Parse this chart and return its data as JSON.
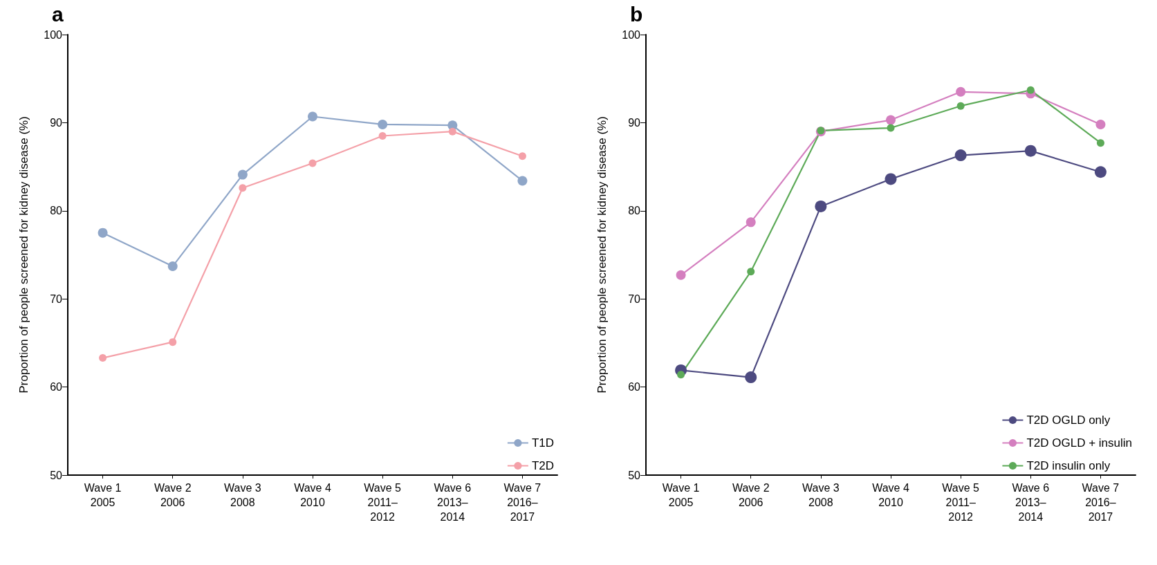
{
  "chart_data": [
    {
      "type": "line",
      "title": "a",
      "ylabel": "Proportion of people screened for kidney disease (%)",
      "categories": [
        "Wave 1\n2005",
        "Wave 2\n2006",
        "Wave 3\n2008",
        "Wave 4\n2010",
        "Wave 5\n2011–\n2012",
        "Wave 6\n2013–\n2014",
        "Wave 7\n2016–\n2017"
      ],
      "series": [
        {
          "name": "T1D",
          "color": "#8fa6c8",
          "values": [
            77.5,
            73.7,
            84.1,
            90.7,
            89.8,
            89.7,
            83.4
          ]
        },
        {
          "name": "T2D",
          "color": "#f4a0a8",
          "values": [
            63.3,
            65.1,
            82.6,
            85.4,
            88.5,
            89.0,
            86.2
          ]
        }
      ],
      "ylim": [
        50,
        100
      ],
      "yticks": [
        50,
        60,
        70,
        80,
        90,
        100
      ],
      "grid": false,
      "legend": "bottom right",
      "marker": "circle",
      "line_style": "solid"
    },
    {
      "type": "line",
      "title": "b",
      "ylabel": "Proportion of people screened for kidney disease (%)",
      "categories": [
        "Wave 1\n2005",
        "Wave 2\n2006",
        "Wave 3\n2008",
        "Wave 4\n2010",
        "Wave 5\n2011–\n2012",
        "Wave 6\n2013–\n2014",
        "Wave 7\n2016–\n2017"
      ],
      "series": [
        {
          "name": "T2D OGLD only",
          "color": "#4d4a80",
          "values": [
            61.9,
            61.1,
            80.5,
            83.6,
            86.3,
            86.8,
            84.4
          ]
        },
        {
          "name": "T2D OGLD + insulin",
          "color": "#d47fbf",
          "values": [
            72.7,
            78.7,
            89.0,
            90.3,
            93.5,
            93.3,
            89.8
          ]
        },
        {
          "name": "T2D insulin only",
          "color": "#5daa58",
          "values": [
            61.4,
            73.1,
            89.1,
            89.4,
            91.9,
            93.7,
            87.7
          ]
        }
      ],
      "ylim": [
        50,
        100
      ],
      "yticks": [
        50,
        60,
        70,
        80,
        90,
        100
      ],
      "grid": false,
      "legend": "bottom right",
      "marker": "circle",
      "line_style": "solid"
    }
  ]
}
